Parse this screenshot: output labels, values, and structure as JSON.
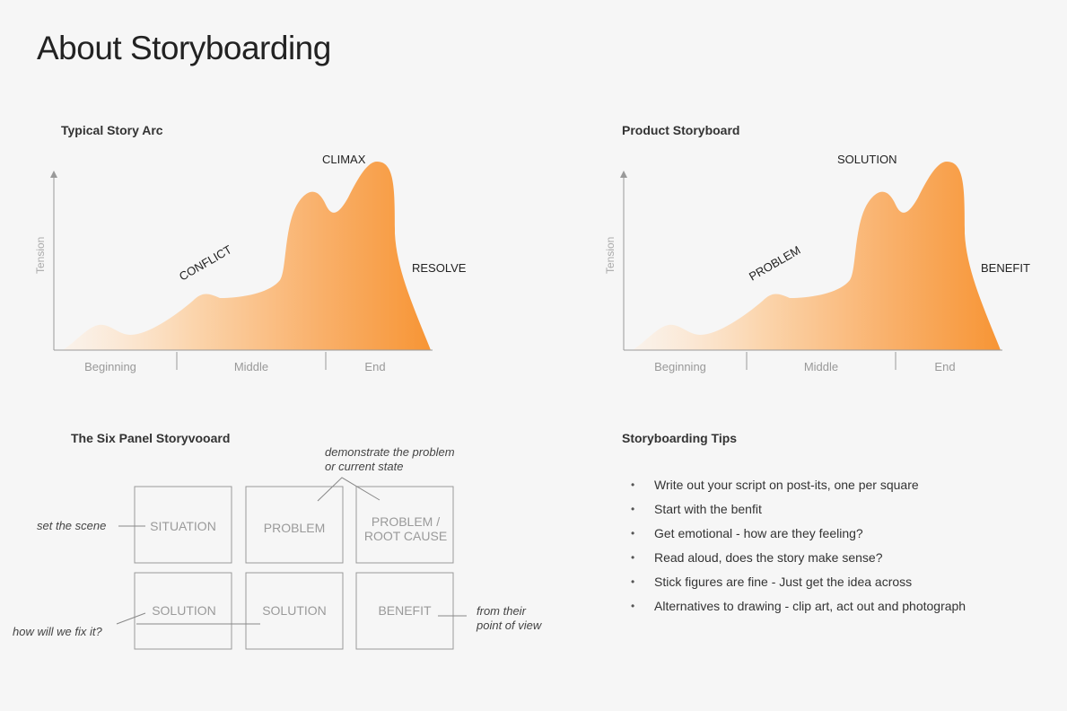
{
  "page": {
    "title": "About Storyboarding"
  },
  "colors": {
    "accent": "#f79535",
    "accent_light": "#fdf0e4",
    "axis": "#999999",
    "box_border": "#999999",
    "box_text": "#9a9a9a"
  },
  "arcs": [
    {
      "title": "Typical Story Arc",
      "y_axis_label": "Tension",
      "segments": [
        "Beginning",
        "Middle",
        "End"
      ],
      "labels": {
        "rising": "CONFLICT",
        "peak": "CLIMAX",
        "falling": "RESOLVE"
      }
    },
    {
      "title": "Product Storyboard",
      "y_axis_label": "Tension",
      "segments": [
        "Beginning",
        "Middle",
        "End"
      ],
      "labels": {
        "rising": "PROBLEM",
        "peak": "SOLUTION",
        "falling": "BENEFIT"
      }
    }
  ],
  "six_panel": {
    "title": "The Six Panel Storyvooard",
    "panels": [
      {
        "line1": "SITUATION",
        "line2": ""
      },
      {
        "line1": "PROBLEM",
        "line2": ""
      },
      {
        "line1": "PROBLEM /",
        "line2": "ROOT CAUSE"
      },
      {
        "line1": "SOLUTION",
        "line2": ""
      },
      {
        "line1": "SOLUTION",
        "line2": ""
      },
      {
        "line1": "BENEFIT",
        "line2": ""
      }
    ],
    "annotations": {
      "problem_line1": "demonstrate the problem",
      "problem_line2": "or current state",
      "scene": "set the scene",
      "fix": "how will we fix it?",
      "benefit_line1": "from their",
      "benefit_line2": "point of view"
    }
  },
  "tips": {
    "title": "Storyboarding Tips",
    "bullet": "•",
    "items": [
      "Write out your script on post-its, one per square",
      "Start with the benfit",
      "Get emotional - how are they feeling?",
      "Read aloud, does the story make sense?",
      "Stick figures are fine - Just get the idea across",
      "Alternatives to drawing - clip art, act out and photograph"
    ]
  }
}
